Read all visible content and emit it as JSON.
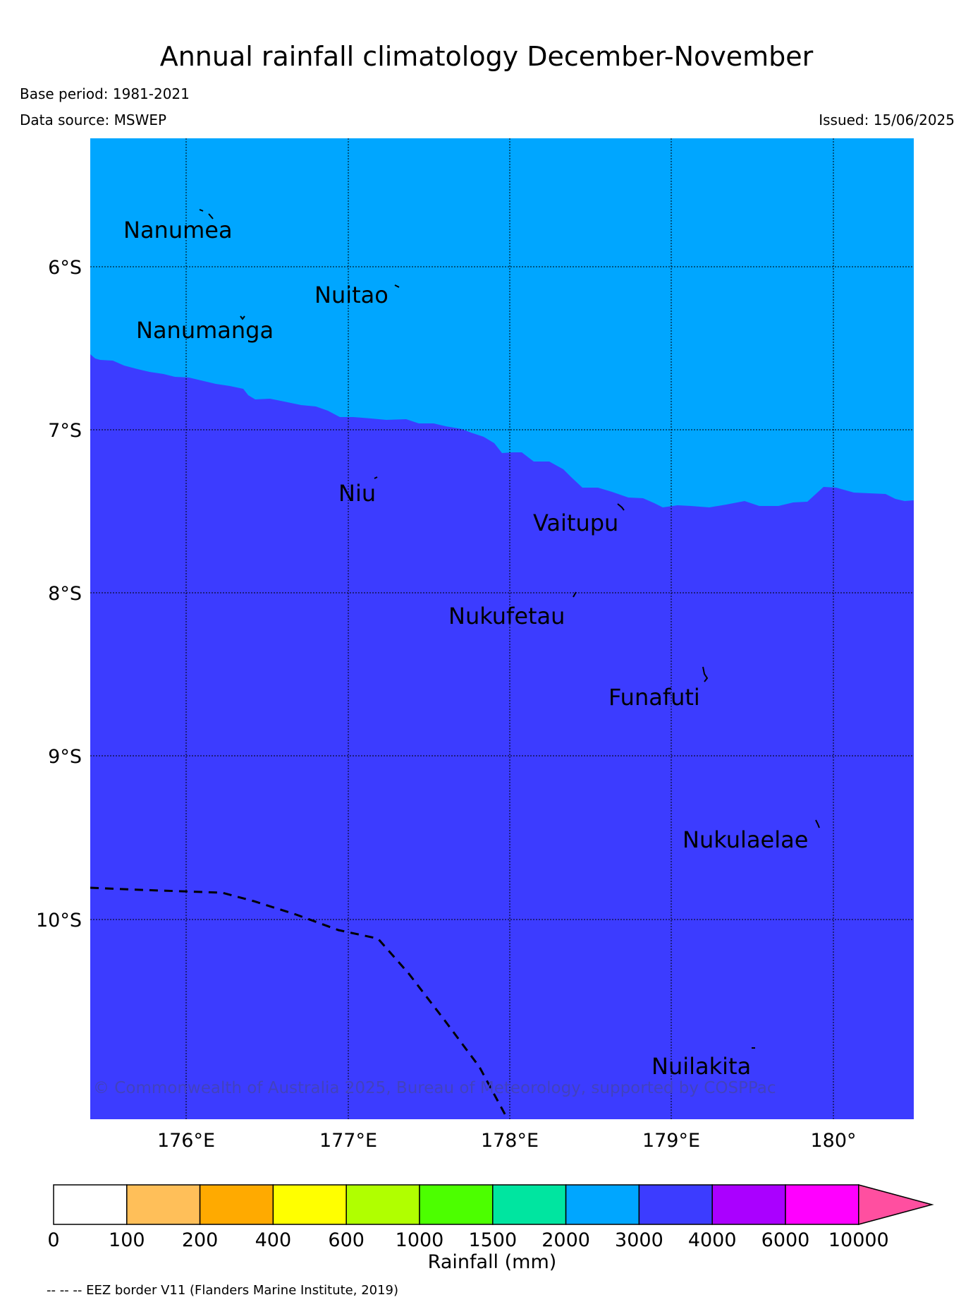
{
  "title": "Annual rainfall climatology December-November",
  "base_period": "Base period: 1981-2021",
  "data_source": "Data source: MSWEP",
  "issued": "Issued: 15/06/2025",
  "copyright": "© Commonwealth of Australia 2025, Bureau of Meteorology, supported by COSPPac",
  "eez_note": "-- -- -- EEZ border V11 (Flanders Marine Institute, 2019)",
  "map": {
    "lon_range": [
      175.4,
      180.5
    ],
    "lat_range": [
      -12.1,
      -6.0
    ],
    "lat_labels": [
      "6°S",
      "7°S",
      "8°S",
      "9°S",
      "10°S"
    ],
    "lon_labels": [
      "176°E",
      "177°E",
      "178°E",
      "179°E",
      "180°"
    ],
    "background_class_color": "#00a6ff",
    "foreground_class_color": "#3c3cff",
    "places": [
      {
        "name": "Nanumea"
      },
      {
        "name": "Nuitao"
      },
      {
        "name": "Nanumanga"
      },
      {
        "name": "Niu"
      },
      {
        "name": "Vaitupu"
      },
      {
        "name": "Nukufetau"
      },
      {
        "name": "Funafuti"
      },
      {
        "name": "Nukulaelae"
      },
      {
        "name": "Nuilakita"
      }
    ]
  },
  "colorbar": {
    "label": "Rainfall (mm)",
    "ticks": [
      "0",
      "100",
      "200",
      "400",
      "600",
      "1000",
      "1500",
      "2000",
      "3000",
      "4000",
      "6000",
      "10000"
    ],
    "colors": [
      "#ffffff",
      "#ffbf59",
      "#ffaa00",
      "#ffff00",
      "#b0ff00",
      "#4cff00",
      "#00e5a0",
      "#00a6ff",
      "#3c3cff",
      "#aa00ff",
      "#ff00ff",
      "#ff4fa0"
    ]
  }
}
